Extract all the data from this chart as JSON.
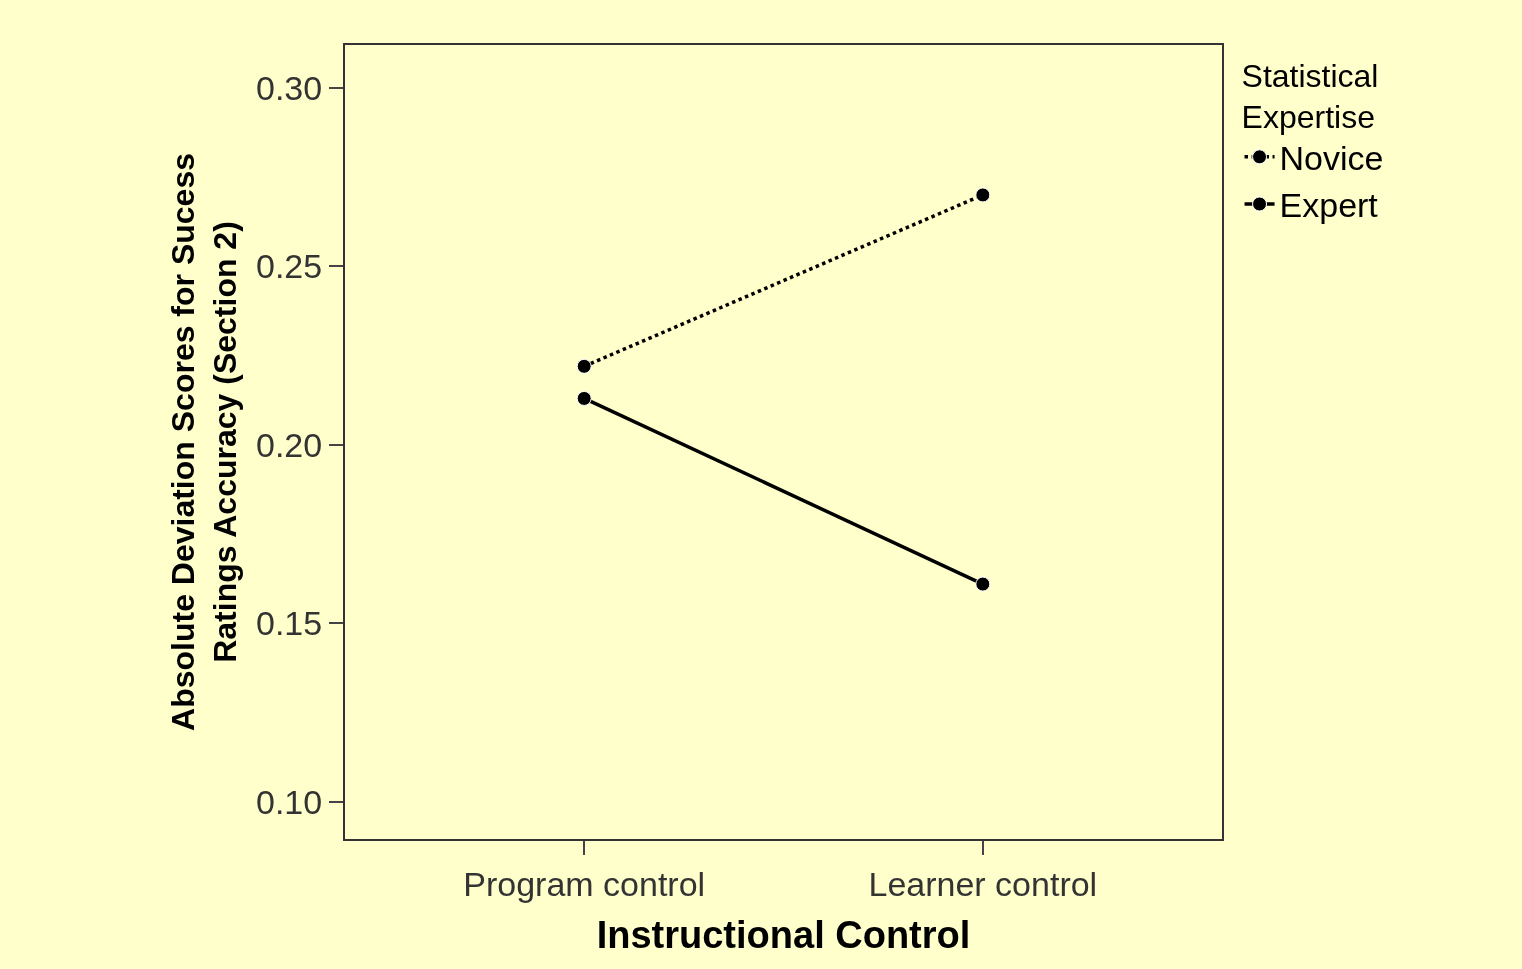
{
  "chart_data": {
    "type": "line",
    "xlabel": "Instructional Control",
    "ylabel": "Absolute Deviation Scores for Sucess\nRatings Accuracy (Section 2)",
    "legend_title": "Statistical\nExpertise",
    "categories": [
      "Program control",
      "Learner control"
    ],
    "series": [
      {
        "name": "Novice",
        "color": "#000000",
        "line_style": "dotted",
        "values": [
          0.222,
          0.27
        ]
      },
      {
        "name": "Expert",
        "color": "#000000",
        "line_style": "solid",
        "values": [
          0.213,
          0.161
        ]
      }
    ],
    "ylim": [
      0.0896,
      0.312
    ],
    "yticks": [
      {
        "value": 0.1,
        "label": "0.10"
      },
      {
        "value": 0.15,
        "label": "0.15"
      },
      {
        "value": 0.2,
        "label": "0.20"
      },
      {
        "value": 0.25,
        "label": "0.25"
      },
      {
        "value": 0.3,
        "label": "0.30"
      }
    ],
    "marker": "circle",
    "grid": false,
    "legend": "top right"
  }
}
